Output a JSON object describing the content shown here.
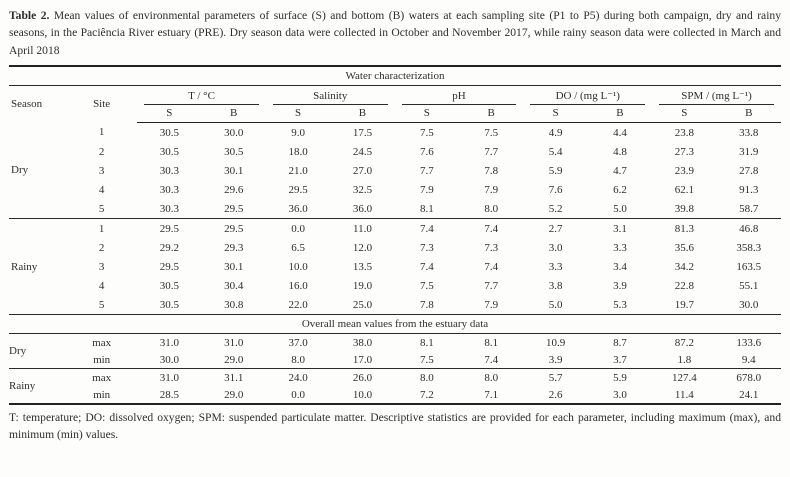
{
  "caption": {
    "label": "Table 2.",
    "text": "Mean values of environmental parameters of surface (S) and bottom (B) waters at each sampling site (P1 to P5) during both campaign, dry and rainy seasons, in the Paciência River estuary (PRE). Dry season data were collected in October and November 2017, while rainy season data were collected in March and April 2018"
  },
  "table": {
    "span_header": "Water characterization",
    "season_header": "Season",
    "site_header": "Site",
    "groups": [
      "T / °C",
      "Salinity",
      "pH",
      "DO / (mg L⁻¹)",
      "SPM / (mg L⁻¹)"
    ],
    "subcols": [
      "S",
      "B"
    ],
    "site_sections": [
      {
        "season": "Dry",
        "rows": [
          {
            "site": "1",
            "values": [
              "30.5",
              "30.0",
              "9.0",
              "17.5",
              "7.5",
              "7.5",
              "4.9",
              "4.4",
              "23.8",
              "33.8"
            ]
          },
          {
            "site": "2",
            "values": [
              "30.5",
              "30.5",
              "18.0",
              "24.5",
              "7.6",
              "7.7",
              "5.4",
              "4.8",
              "27.3",
              "31.9"
            ]
          },
          {
            "site": "3",
            "values": [
              "30.3",
              "30.1",
              "21.0",
              "27.0",
              "7.7",
              "7.8",
              "5.9",
              "4.7",
              "23.9",
              "27.8"
            ]
          },
          {
            "site": "4",
            "values": [
              "30.3",
              "29.6",
              "29.5",
              "32.5",
              "7.9",
              "7.9",
              "7.6",
              "6.2",
              "62.1",
              "91.3"
            ]
          },
          {
            "site": "5",
            "values": [
              "30.3",
              "29.5",
              "36.0",
              "36.0",
              "8.1",
              "8.0",
              "5.2",
              "5.0",
              "39.8",
              "58.7"
            ]
          }
        ]
      },
      {
        "season": "Rainy",
        "rows": [
          {
            "site": "1",
            "values": [
              "29.5",
              "29.5",
              "0.0",
              "11.0",
              "7.4",
              "7.4",
              "2.7",
              "3.1",
              "81.3",
              "46.8"
            ]
          },
          {
            "site": "2",
            "values": [
              "29.2",
              "29.3",
              "6.5",
              "12.0",
              "7.3",
              "7.3",
              "3.0",
              "3.3",
              "35.6",
              "358.3"
            ]
          },
          {
            "site": "3",
            "values": [
              "29.5",
              "30.1",
              "10.0",
              "13.5",
              "7.4",
              "7.4",
              "3.3",
              "3.4",
              "34.2",
              "163.5"
            ]
          },
          {
            "site": "4",
            "values": [
              "30.5",
              "30.4",
              "16.0",
              "19.0",
              "7.5",
              "7.7",
              "3.8",
              "3.9",
              "22.8",
              "55.1"
            ]
          },
          {
            "site": "5",
            "values": [
              "30.5",
              "30.8",
              "22.0",
              "25.0",
              "7.8",
              "7.9",
              "5.0",
              "5.3",
              "19.7",
              "30.0"
            ]
          }
        ]
      }
    ],
    "overall_header": "Overall mean values from the estuary data",
    "overall_sections": [
      {
        "season": "Dry",
        "rows": [
          {
            "stat": "max",
            "values": [
              "31.0",
              "31.0",
              "37.0",
              "38.0",
              "8.1",
              "8.1",
              "10.9",
              "8.7",
              "87.2",
              "133.6"
            ]
          },
          {
            "stat": "min",
            "values": [
              "30.0",
              "29.0",
              "8.0",
              "17.0",
              "7.5",
              "7.4",
              "3.9",
              "3.7",
              "1.8",
              "9.4"
            ]
          }
        ]
      },
      {
        "season": "Rainy",
        "rows": [
          {
            "stat": "max",
            "values": [
              "31.0",
              "31.1",
              "24.0",
              "26.0",
              "8.0",
              "8.0",
              "5.7",
              "5.9",
              "127.4",
              "678.0"
            ]
          },
          {
            "stat": "min",
            "values": [
              "28.5",
              "29.0",
              "0.0",
              "10.0",
              "7.2",
              "7.1",
              "2.6",
              "3.0",
              "11.4",
              "24.1"
            ]
          }
        ]
      }
    ]
  },
  "footnote": "T: temperature; DO: dissolved oxygen; SPM: suspended particulate matter. Descriptive statistics are provided for each parameter, including maximum (max), and minimum (min) values."
}
